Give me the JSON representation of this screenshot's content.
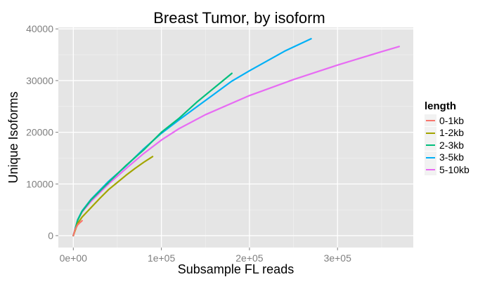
{
  "chart_data": {
    "type": "line",
    "title": "Breast Tumor, by isoform",
    "xlabel": "Subsample FL reads",
    "ylabel": "Unique Isoforms",
    "xlim": [
      -17000,
      386000
    ],
    "ylim": [
      -2300,
      40300
    ],
    "x_ticks": [
      0,
      100000,
      200000,
      300000
    ],
    "x_tick_labels": [
      "0e+00",
      "1e+05",
      "2e+05",
      "3e+05"
    ],
    "y_ticks": [
      0,
      10000,
      20000,
      30000,
      40000
    ],
    "y_tick_labels": [
      "0",
      "10000",
      "20000",
      "30000",
      "40000"
    ],
    "grid": true,
    "legend_title": "length",
    "legend_position": "right",
    "series": [
      {
        "name": "0-1kb",
        "color": "#F8766D",
        "x": [
          0,
          2000,
          5000,
          8000,
          10000
        ],
        "y": [
          0,
          1200,
          2100,
          2600,
          2900
        ]
      },
      {
        "name": "1-2kb",
        "color": "#A3A500",
        "x": [
          0,
          5000,
          10000,
          20000,
          30000,
          40000,
          50000,
          60000,
          70000,
          80000,
          90000
        ],
        "y": [
          0,
          2400,
          3600,
          5400,
          7200,
          8900,
          10300,
          11700,
          13000,
          14200,
          15300
        ]
      },
      {
        "name": "2-3kb",
        "color": "#00BF7D",
        "x": [
          0,
          5000,
          10000,
          20000,
          40000,
          60000,
          80000,
          100000,
          120000,
          140000,
          160000,
          180000
        ],
        "y": [
          0,
          3000,
          4700,
          6900,
          10300,
          13600,
          16600,
          20000,
          22700,
          25800,
          28600,
          31400
        ]
      },
      {
        "name": "3-5kb",
        "color": "#00B0F6",
        "x": [
          0,
          5000,
          10000,
          20000,
          40000,
          60000,
          80000,
          100000,
          120000,
          140000,
          160000,
          180000,
          200000,
          220000,
          240000,
          270000
        ],
        "y": [
          0,
          3100,
          4800,
          7000,
          10500,
          13500,
          16800,
          19800,
          22400,
          24900,
          27400,
          29900,
          31900,
          33800,
          35700,
          38100
        ]
      },
      {
        "name": "5-10kb",
        "color": "#E76BF3",
        "x": [
          0,
          5000,
          10000,
          20000,
          40000,
          60000,
          80000,
          100000,
          120000,
          150000,
          200000,
          250000,
          300000,
          350000,
          370000
        ],
        "y": [
          0,
          3000,
          4600,
          6600,
          10000,
          13000,
          15900,
          18500,
          20700,
          23400,
          27100,
          30200,
          33000,
          35600,
          36600
        ]
      }
    ]
  }
}
